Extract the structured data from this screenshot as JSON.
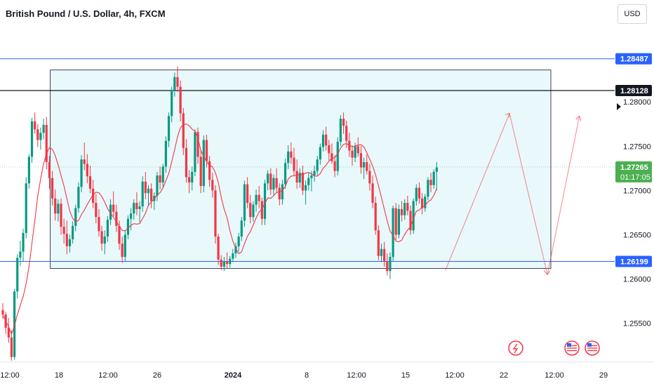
{
  "header": {
    "title": "British Pound / U.S. Dollar, 4h, FXCM",
    "currency": "USD"
  },
  "colors": {
    "up": "#089981",
    "down": "#f23645",
    "ma": "#f23645",
    "box_fill": "#e9f8fb",
    "box_border": "#131722",
    "blue_line": "#2962ff",
    "black_line": "#131722",
    "green": "#4caf50"
  },
  "chart_data": {
    "type": "candlestick",
    "title": "British Pound / U.S. Dollar, 4h, FXCM",
    "y_ticks": [
      "1.28000",
      "1.27500",
      "1.27000",
      "1.26500",
      "1.26000",
      "1.25500"
    ],
    "ylim": [
      1.2507,
      1.2915
    ],
    "x_ticks": [
      "12:00",
      "18",
      "12:00",
      "26",
      "2024",
      "8",
      "12:00",
      "15",
      "12:00",
      "22",
      "12:00",
      "29"
    ],
    "price_labels": [
      {
        "value": "1.28487",
        "style": "blue"
      },
      {
        "value": "1.28128",
        "style": "black"
      },
      {
        "value": "1.27265",
        "countdown": "01:17:05",
        "style": "green"
      },
      {
        "value": "1.26199",
        "style": "blue"
      }
    ],
    "levels": {
      "blue_top": 1.28487,
      "black": 1.28128,
      "blue_bottom": 1.26199,
      "last": 1.27265
    },
    "range_box": {
      "from_index": 11,
      "to_index": 176,
      "top": 1.2836,
      "bottom": 1.2612
    },
    "forecast_paths": [
      [
        [
          152,
          1.261
        ],
        [
          174,
          1.2787
        ],
        [
          187,
          1.2605
        ],
        [
          198,
          1.2784
        ]
      ]
    ],
    "candles": [
      [
        1.2565,
        1.2573,
        1.2555,
        1.256
      ],
      [
        1.256,
        1.2563,
        1.2538,
        1.2545
      ],
      [
        1.2545,
        1.2556,
        1.2528,
        1.2534
      ],
      [
        1.2534,
        1.2542,
        1.2508,
        1.2512
      ],
      [
        1.2512,
        1.2589,
        1.2509,
        1.2586
      ],
      [
        1.2586,
        1.2628,
        1.2578,
        1.2624
      ],
      [
        1.2624,
        1.2643,
        1.2615,
        1.2631
      ],
      [
        1.2631,
        1.2657,
        1.262,
        1.2652
      ],
      [
        1.2652,
        1.2715,
        1.2646,
        1.2708
      ],
      [
        1.2708,
        1.2741,
        1.2702,
        1.2738
      ],
      [
        1.2738,
        1.2782,
        1.2731,
        1.2778
      ],
      [
        1.2778,
        1.2788,
        1.2764,
        1.2769
      ],
      [
        1.2769,
        1.2775,
        1.2749,
        1.2757
      ],
      [
        1.2757,
        1.2771,
        1.2746,
        1.2765
      ],
      [
        1.2765,
        1.2781,
        1.2758,
        1.2774
      ],
      [
        1.2774,
        1.2783,
        1.2724,
        1.2732
      ],
      [
        1.2732,
        1.2739,
        1.2702,
        1.2714
      ],
      [
        1.2714,
        1.2722,
        1.2683,
        1.2691
      ],
      [
        1.2691,
        1.2701,
        1.2666,
        1.2674
      ],
      [
        1.2674,
        1.269,
        1.2665,
        1.2685
      ],
      [
        1.2685,
        1.2691,
        1.265,
        1.2659
      ],
      [
        1.2659,
        1.2668,
        1.264,
        1.2651
      ],
      [
        1.2651,
        1.2666,
        1.2628,
        1.2637
      ],
      [
        1.2637,
        1.265,
        1.263,
        1.2645
      ],
      [
        1.2645,
        1.2665,
        1.264,
        1.266
      ],
      [
        1.266,
        1.2684,
        1.2654,
        1.268
      ],
      [
        1.268,
        1.2709,
        1.2675,
        1.2704
      ],
      [
        1.2704,
        1.274,
        1.2698,
        1.2735
      ],
      [
        1.2735,
        1.2754,
        1.2723,
        1.273
      ],
      [
        1.273,
        1.2741,
        1.2708,
        1.2716
      ],
      [
        1.2716,
        1.2728,
        1.2697,
        1.2702
      ],
      [
        1.2702,
        1.2712,
        1.268,
        1.2686
      ],
      [
        1.2686,
        1.2696,
        1.2663,
        1.267
      ],
      [
        1.267,
        1.2679,
        1.2648,
        1.2654
      ],
      [
        1.2654,
        1.266,
        1.2632,
        1.264
      ],
      [
        1.264,
        1.2655,
        1.2628,
        1.2648
      ],
      [
        1.2648,
        1.2671,
        1.2642,
        1.2667
      ],
      [
        1.2667,
        1.269,
        1.2661,
        1.2684
      ],
      [
        1.2684,
        1.2699,
        1.2671,
        1.2676
      ],
      [
        1.2676,
        1.2684,
        1.2653,
        1.266
      ],
      [
        1.266,
        1.2666,
        1.2633,
        1.264
      ],
      [
        1.264,
        1.2648,
        1.2618,
        1.2625
      ],
      [
        1.2625,
        1.2655,
        1.262,
        1.265
      ],
      [
        1.265,
        1.2672,
        1.2645,
        1.2668
      ],
      [
        1.2668,
        1.268,
        1.2655,
        1.2674
      ],
      [
        1.2674,
        1.269,
        1.2667,
        1.2686
      ],
      [
        1.2686,
        1.2698,
        1.2672,
        1.2679
      ],
      [
        1.2679,
        1.2688,
        1.2664,
        1.2682
      ],
      [
        1.2682,
        1.2716,
        1.2676,
        1.271
      ],
      [
        1.271,
        1.2721,
        1.269,
        1.2697
      ],
      [
        1.2697,
        1.2706,
        1.2683,
        1.2702
      ],
      [
        1.2702,
        1.2708,
        1.268,
        1.2688
      ],
      [
        1.2688,
        1.2698,
        1.2678,
        1.2694
      ],
      [
        1.2694,
        1.2721,
        1.2688,
        1.2717
      ],
      [
        1.2717,
        1.2727,
        1.2701,
        1.2709
      ],
      [
        1.2709,
        1.273,
        1.2704,
        1.2727
      ],
      [
        1.2727,
        1.2761,
        1.272,
        1.2756
      ],
      [
        1.2756,
        1.2788,
        1.2749,
        1.2784
      ],
      [
        1.2784,
        1.2817,
        1.2777,
        1.2813
      ],
      [
        1.2813,
        1.2833,
        1.2806,
        1.2828
      ],
      [
        1.2828,
        1.284,
        1.2811,
        1.2817
      ],
      [
        1.2817,
        1.2824,
        1.2778,
        1.2787
      ],
      [
        1.2787,
        1.2793,
        1.274,
        1.2748
      ],
      [
        1.2748,
        1.2758,
        1.2709,
        1.2715
      ],
      [
        1.2715,
        1.2723,
        1.2697,
        1.2709
      ],
      [
        1.2709,
        1.2727,
        1.27,
        1.2721
      ],
      [
        1.2721,
        1.2769,
        1.2716,
        1.2766
      ],
      [
        1.2766,
        1.2771,
        1.273,
        1.2738
      ],
      [
        1.2738,
        1.2745,
        1.2697,
        1.2705
      ],
      [
        1.2705,
        1.2762,
        1.2698,
        1.2757
      ],
      [
        1.2757,
        1.2763,
        1.2726,
        1.2733
      ],
      [
        1.2733,
        1.2739,
        1.2704,
        1.2712
      ],
      [
        1.2712,
        1.272,
        1.2692,
        1.27
      ],
      [
        1.27,
        1.2706,
        1.264,
        1.2648
      ],
      [
        1.2648,
        1.2651,
        1.2616,
        1.2622
      ],
      [
        1.2622,
        1.2627,
        1.261,
        1.2614
      ],
      [
        1.2614,
        1.2625,
        1.2609,
        1.262
      ],
      [
        1.262,
        1.263,
        1.2612,
        1.2617
      ],
      [
        1.2617,
        1.2626,
        1.2613,
        1.2623
      ],
      [
        1.2623,
        1.2634,
        1.2619,
        1.2629
      ],
      [
        1.2629,
        1.2641,
        1.2624,
        1.2637
      ],
      [
        1.2637,
        1.2652,
        1.2631,
        1.2648
      ],
      [
        1.2648,
        1.267,
        1.2643,
        1.2666
      ],
      [
        1.2666,
        1.2711,
        1.2659,
        1.2707
      ],
      [
        1.2707,
        1.2715,
        1.268,
        1.2686
      ],
      [
        1.2686,
        1.2695,
        1.2663,
        1.267
      ],
      [
        1.267,
        1.2688,
        1.2665,
        1.2684
      ],
      [
        1.2684,
        1.2701,
        1.2676,
        1.2695
      ],
      [
        1.2695,
        1.2705,
        1.268,
        1.2688
      ],
      [
        1.2688,
        1.2692,
        1.2661,
        1.2668
      ],
      [
        1.2668,
        1.2712,
        1.2661,
        1.2708
      ],
      [
        1.2708,
        1.2723,
        1.27,
        1.2719
      ],
      [
        1.2719,
        1.2725,
        1.2695,
        1.2701
      ],
      [
        1.2701,
        1.2718,
        1.2695,
        1.2714
      ],
      [
        1.2714,
        1.2725,
        1.2697,
        1.2703
      ],
      [
        1.2703,
        1.2708,
        1.2683,
        1.269
      ],
      [
        1.269,
        1.2712,
        1.2684,
        1.2707
      ],
      [
        1.2707,
        1.2736,
        1.2702,
        1.2731
      ],
      [
        1.2731,
        1.2751,
        1.2724,
        1.2744
      ],
      [
        1.2744,
        1.2754,
        1.273,
        1.2737
      ],
      [
        1.2737,
        1.2748,
        1.2716,
        1.2722
      ],
      [
        1.2722,
        1.2735,
        1.2702,
        1.2709
      ],
      [
        1.2709,
        1.2725,
        1.2703,
        1.272
      ],
      [
        1.272,
        1.2728,
        1.2695,
        1.27
      ],
      [
        1.27,
        1.2711,
        1.2684,
        1.2706
      ],
      [
        1.2706,
        1.272,
        1.27,
        1.2714
      ],
      [
        1.2714,
        1.2722,
        1.2699,
        1.2717
      ],
      [
        1.2717,
        1.2728,
        1.271,
        1.2722
      ],
      [
        1.2722,
        1.2739,
        1.2717,
        1.2735
      ],
      [
        1.2735,
        1.2753,
        1.2729,
        1.2749
      ],
      [
        1.2749,
        1.2768,
        1.2744,
        1.2763
      ],
      [
        1.2763,
        1.2772,
        1.2745,
        1.2751
      ],
      [
        1.2751,
        1.2757,
        1.2734,
        1.2742
      ],
      [
        1.2742,
        1.2753,
        1.273,
        1.2733
      ],
      [
        1.2733,
        1.274,
        1.2715,
        1.2722
      ],
      [
        1.2722,
        1.276,
        1.2717,
        1.2755
      ],
      [
        1.2755,
        1.2785,
        1.275,
        1.2781
      ],
      [
        1.2781,
        1.2788,
        1.2764,
        1.2773
      ],
      [
        1.2773,
        1.2779,
        1.2748,
        1.2756
      ],
      [
        1.2756,
        1.2765,
        1.2738,
        1.2745
      ],
      [
        1.2745,
        1.2751,
        1.2728,
        1.2737
      ],
      [
        1.2737,
        1.2754,
        1.2732,
        1.275
      ],
      [
        1.275,
        1.276,
        1.2738,
        1.2742
      ],
      [
        1.2742,
        1.275,
        1.2719,
        1.2726
      ],
      [
        1.2726,
        1.2737,
        1.2713,
        1.2732
      ],
      [
        1.2732,
        1.2741,
        1.2718,
        1.2722
      ],
      [
        1.2722,
        1.273,
        1.27,
        1.2708
      ],
      [
        1.2708,
        1.2717,
        1.268,
        1.2686
      ],
      [
        1.2686,
        1.2693,
        1.265,
        1.2655
      ],
      [
        1.2655,
        1.2661,
        1.2621,
        1.2626
      ],
      [
        1.2626,
        1.264,
        1.2619,
        1.2634
      ],
      [
        1.2634,
        1.2642,
        1.2614,
        1.262
      ],
      [
        1.262,
        1.2629,
        1.2604,
        1.2609
      ],
      [
        1.2609,
        1.263,
        1.26,
        1.2625
      ],
      [
        1.2625,
        1.2683,
        1.262,
        1.268
      ],
      [
        1.268,
        1.2686,
        1.2644,
        1.265
      ],
      [
        1.265,
        1.2684,
        1.2646,
        1.2679
      ],
      [
        1.2679,
        1.2688,
        1.2665,
        1.2672
      ],
      [
        1.2672,
        1.269,
        1.2667,
        1.2686
      ],
      [
        1.2686,
        1.2694,
        1.2672,
        1.2677
      ],
      [
        1.2677,
        1.2683,
        1.265,
        1.2655
      ],
      [
        1.2655,
        1.2691,
        1.2651,
        1.2688
      ],
      [
        1.2688,
        1.2707,
        1.2683,
        1.2703
      ],
      [
        1.2703,
        1.2709,
        1.2685,
        1.2691
      ],
      [
        1.2691,
        1.2697,
        1.2673,
        1.268
      ],
      [
        1.268,
        1.2696,
        1.2676,
        1.2693
      ],
      [
        1.2693,
        1.2715,
        1.2689,
        1.2712
      ],
      [
        1.2712,
        1.272,
        1.2698,
        1.2706
      ],
      [
        1.2706,
        1.2724,
        1.2702,
        1.2721
      ],
      [
        1.2721,
        1.2732,
        1.27,
        1.2726
      ]
    ]
  },
  "events": [
    {
      "name": "lightning-event-icon"
    },
    {
      "name": "us-flag-event-icon"
    },
    {
      "name": "us-flag-event-icon"
    }
  ]
}
